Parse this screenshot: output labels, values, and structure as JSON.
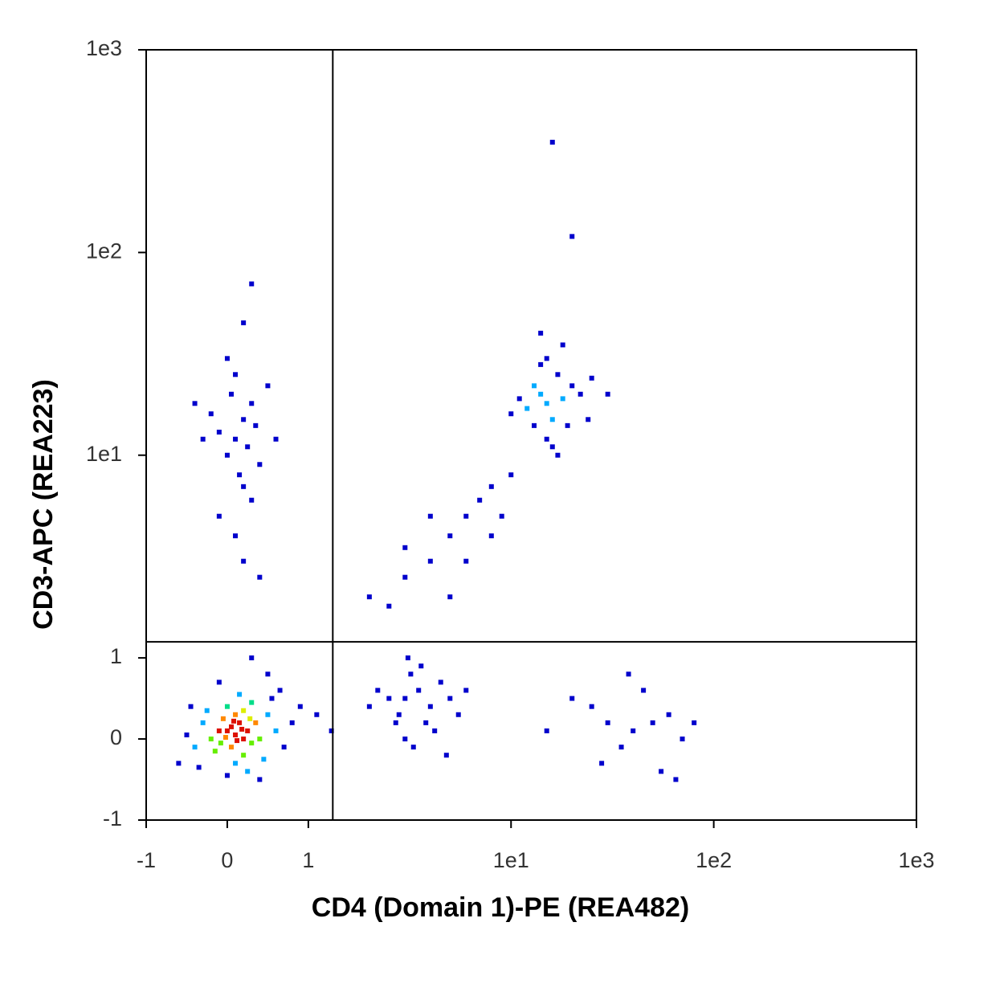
{
  "chart_data": {
    "type": "scatter",
    "x_label": "CD4 (Domain 1)-PE (REA482)",
    "y_label": "CD3-APC (REA223)",
    "scale": "biexponential",
    "xlim": [
      -1,
      1000
    ],
    "ylim": [
      -1,
      1000
    ],
    "xticks": [
      -1,
      0,
      1,
      {
        "value": 10,
        "label": "1e1"
      },
      {
        "value": 100,
        "label": "1e2"
      },
      {
        "value": 1000,
        "label": "1e3"
      }
    ],
    "yticks": [
      -1,
      0,
      1,
      {
        "value": 10,
        "label": "1e1"
      },
      {
        "value": 100,
        "label": "1e2"
      },
      {
        "value": 1000,
        "label": "1e3"
      }
    ],
    "quadrant_gate": {
      "x": 1.32,
      "y": 1.2
    },
    "color": "#0000cc",
    "x": [
      0.1,
      0.0,
      0.2,
      -0.1,
      0.15,
      0.05,
      0.25,
      -0.05,
      0.3,
      0.1,
      -0.2,
      0.2,
      0.35,
      -0.15,
      0.0,
      0.4,
      -0.3,
      0.1,
      0.5,
      -0.4,
      0.3,
      0.2,
      -0.25,
      0.45,
      0.6,
      -0.5,
      0.0,
      0.25,
      0.55,
      -0.35,
      0.15,
      0.7,
      -0.45,
      0.05,
      0.12,
      -0.02,
      0.18,
      0.08,
      -0.08,
      0.28,
      0.65,
      0.8,
      -0.6,
      0.4,
      0.9,
      1.1,
      1.3,
      0.5,
      -0.1,
      0.3,
      0.1,
      0.2,
      0.0,
      0.3,
      -0.1,
      0.15,
      0.25,
      0.05,
      0.35,
      -0.2,
      0.4,
      0.1,
      -0.3,
      0.2,
      0.5,
      0.0,
      -0.4,
      0.6,
      0.3,
      0.1,
      0.2,
      -0.1,
      0.4,
      0.2,
      0.3,
      15,
      14,
      16,
      13,
      18,
      17,
      12,
      15,
      19,
      14,
      20,
      16,
      13,
      22,
      11,
      15,
      25,
      10,
      18,
      14,
      24,
      17,
      30,
      20,
      16,
      3,
      3.5,
      2.8,
      4,
      3.2,
      2.5,
      4.5,
      3.8,
      3,
      5,
      2.2,
      3.6,
      4.2,
      2.7,
      5.5,
      3.3,
      6,
      2,
      4.8,
      3.1,
      30,
      40,
      25,
      50,
      35,
      60,
      20,
      45,
      70,
      28,
      55,
      80,
      15,
      38,
      65,
      2,
      3,
      4,
      5,
      6,
      7,
      8,
      9,
      5,
      3,
      4,
      10,
      6,
      2.5,
      8
    ],
    "y": [
      0.05,
      0.1,
      0.0,
      0.1,
      0.2,
      -0.1,
      0.1,
      0.25,
      -0.05,
      0.3,
      0.0,
      -0.2,
      0.2,
      -0.15,
      0.4,
      0.0,
      0.2,
      -0.3,
      0.3,
      -0.1,
      0.45,
      0.35,
      0.35,
      -0.25,
      0.1,
      0.05,
      -0.45,
      -0.4,
      0.5,
      -0.35,
      0.55,
      -0.1,
      0.4,
      0.15,
      -0.02,
      0.02,
      0.12,
      0.22,
      -0.05,
      0.25,
      0.6,
      0.2,
      -0.3,
      -0.5,
      0.4,
      0.3,
      0.1,
      0.8,
      0.7,
      1.0,
      12,
      15,
      10,
      18,
      13,
      8,
      11,
      20,
      14,
      16,
      9,
      25,
      12,
      7,
      22,
      30,
      18,
      12,
      6,
      4,
      3,
      5,
      2.5,
      45,
      70,
      18,
      20,
      15,
      22,
      19,
      25,
      17,
      12,
      14,
      28,
      22,
      11,
      14,
      20,
      19,
      30,
      24,
      16,
      35,
      40,
      15,
      10,
      20,
      120,
      350,
      0.5,
      0.6,
      0.3,
      0.4,
      0.8,
      0.5,
      0.7,
      0.2,
      0.0,
      0.5,
      0.6,
      0.9,
      0.1,
      0.2,
      0.3,
      -0.1,
      0.6,
      0.4,
      -0.2,
      1.0,
      0.2,
      0.1,
      0.4,
      0.2,
      -0.1,
      0.3,
      0.5,
      0.6,
      0.0,
      -0.3,
      -0.4,
      0.2,
      0.1,
      0.8,
      -0.5,
      2,
      2.5,
      3,
      4,
      5,
      6,
      7,
      5,
      2,
      3.5,
      5,
      8,
      3,
      1.8,
      4
    ]
  }
}
